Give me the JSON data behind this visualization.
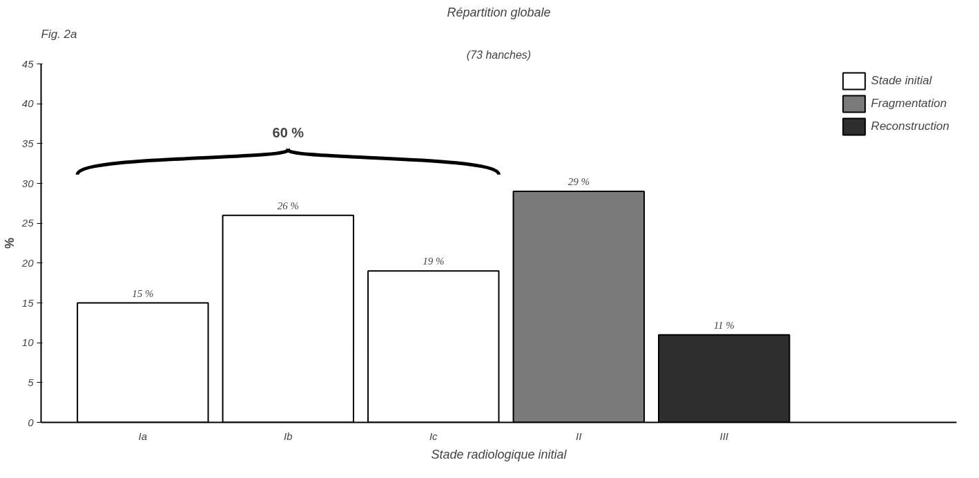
{
  "chart_data": {
    "type": "bar",
    "title": "Répartition globale",
    "subtitle": "(73 hanches)",
    "xlabel": "Stade radiologique initial",
    "ylabel": "%",
    "categories": [
      "Ia",
      "Ib",
      "Ic",
      "II",
      "III"
    ],
    "series": [
      {
        "name": "Stade initial",
        "color": "#ffffff",
        "values": [
          15,
          26,
          19,
          null,
          null
        ],
        "value_labels": [
          "15 %",
          "26 %",
          "19 %",
          null,
          null
        ]
      },
      {
        "name": "Fragmentation",
        "color": "#7a7a7a",
        "values": [
          null,
          null,
          null,
          29,
          null
        ],
        "value_labels": [
          null,
          null,
          null,
          "29 %",
          null
        ]
      },
      {
        "name": "Reconstruction",
        "color": "#2e2e2e",
        "values": [
          null,
          null,
          null,
          null,
          11
        ],
        "value_labels": [
          null,
          null,
          null,
          null,
          "11 %"
        ]
      }
    ],
    "ylim": [
      0,
      45
    ],
    "yticks": [
      0,
      5,
      10,
      15,
      20,
      25,
      30,
      35,
      40,
      45
    ],
    "annotations": [
      "Fig. 2a",
      "60 %"
    ],
    "grid": false,
    "legend": "top right"
  }
}
